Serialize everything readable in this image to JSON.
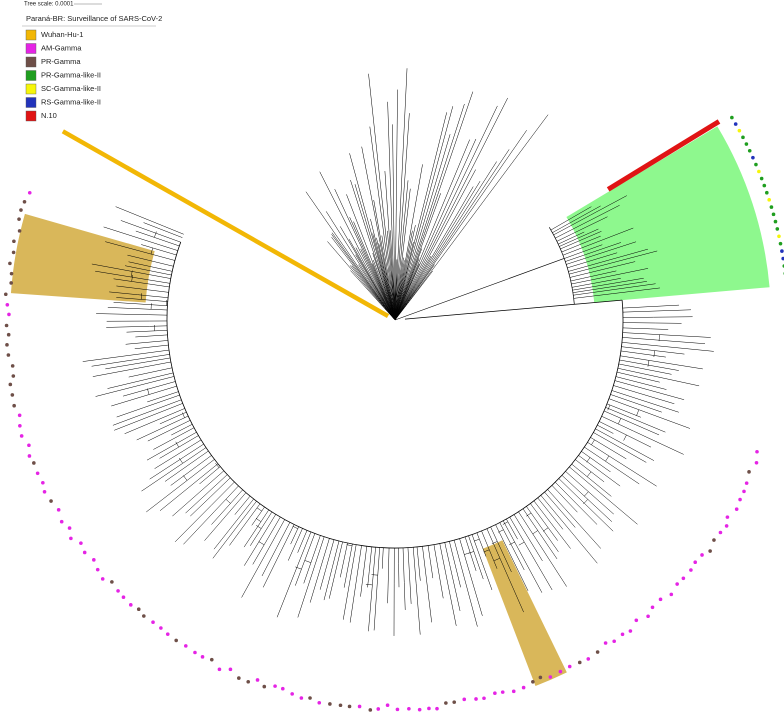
{
  "tree_scale": {
    "label": "Tree scale: 0.0001"
  },
  "legend": {
    "title": "Paraná-BR: Surveillance of SARS-CoV-2",
    "items": [
      {
        "label": "Wuhan-Hu-1",
        "color": "#f2b705"
      },
      {
        "label": "AM-Gamma",
        "color": "#e524e5"
      },
      {
        "label": "PR-Gamma",
        "color": "#6e4f48"
      },
      {
        "label": "PR-Gamma-like-II",
        "color": "#1f9e1f"
      },
      {
        "label": "SC-Gamma-like-II",
        "color": "#f6f60a"
      },
      {
        "label": "RS-Gamma-like-II",
        "color": "#2233bb"
      },
      {
        "label": "N.10",
        "color": "#e01414"
      }
    ]
  }
}
